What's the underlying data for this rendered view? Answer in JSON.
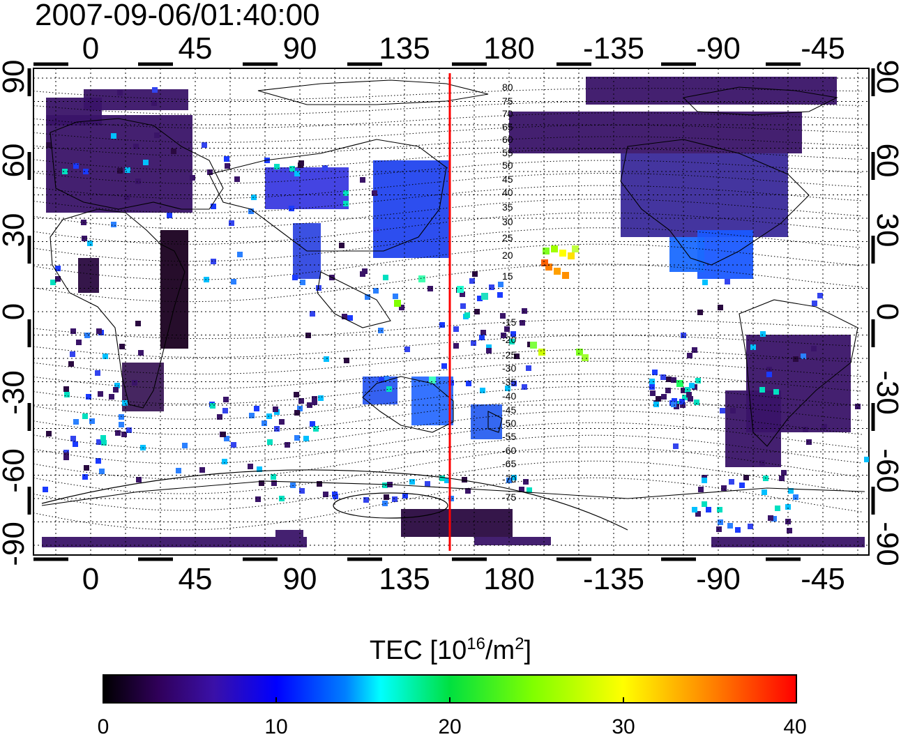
{
  "title": "2007-09-06/01:40:00",
  "map": {
    "x_tick_labels": [
      "0",
      "45",
      "90",
      "135",
      "180",
      "-135",
      "-90",
      "-45"
    ],
    "y_tick_labels": [
      "90",
      "60",
      "30",
      "0",
      "-30",
      "-60",
      "-90"
    ],
    "north_contour_labels": [
      "80",
      "75",
      "70",
      "65",
      "60",
      "55",
      "50",
      "45",
      "40",
      "35",
      "30",
      "25",
      "20",
      "15"
    ],
    "south_contour_labels": [
      "-15",
      "-20",
      "-25",
      "-30",
      "-35",
      "-40",
      "-45",
      "-50",
      "-55",
      "-60",
      "-65",
      "-70",
      "-75"
    ],
    "terminator_longitude": 155,
    "terminator_color": "#ff0000",
    "grid": "on"
  },
  "colorbar": {
    "title_prefix": "TEC  [10",
    "title_exp1": "16",
    "title_mid": "/m",
    "title_exp2": "2",
    "title_suffix": "]",
    "ticks": [
      "0",
      "10",
      "20",
      "30",
      "40"
    ],
    "min": 0,
    "max": 40
  }
}
